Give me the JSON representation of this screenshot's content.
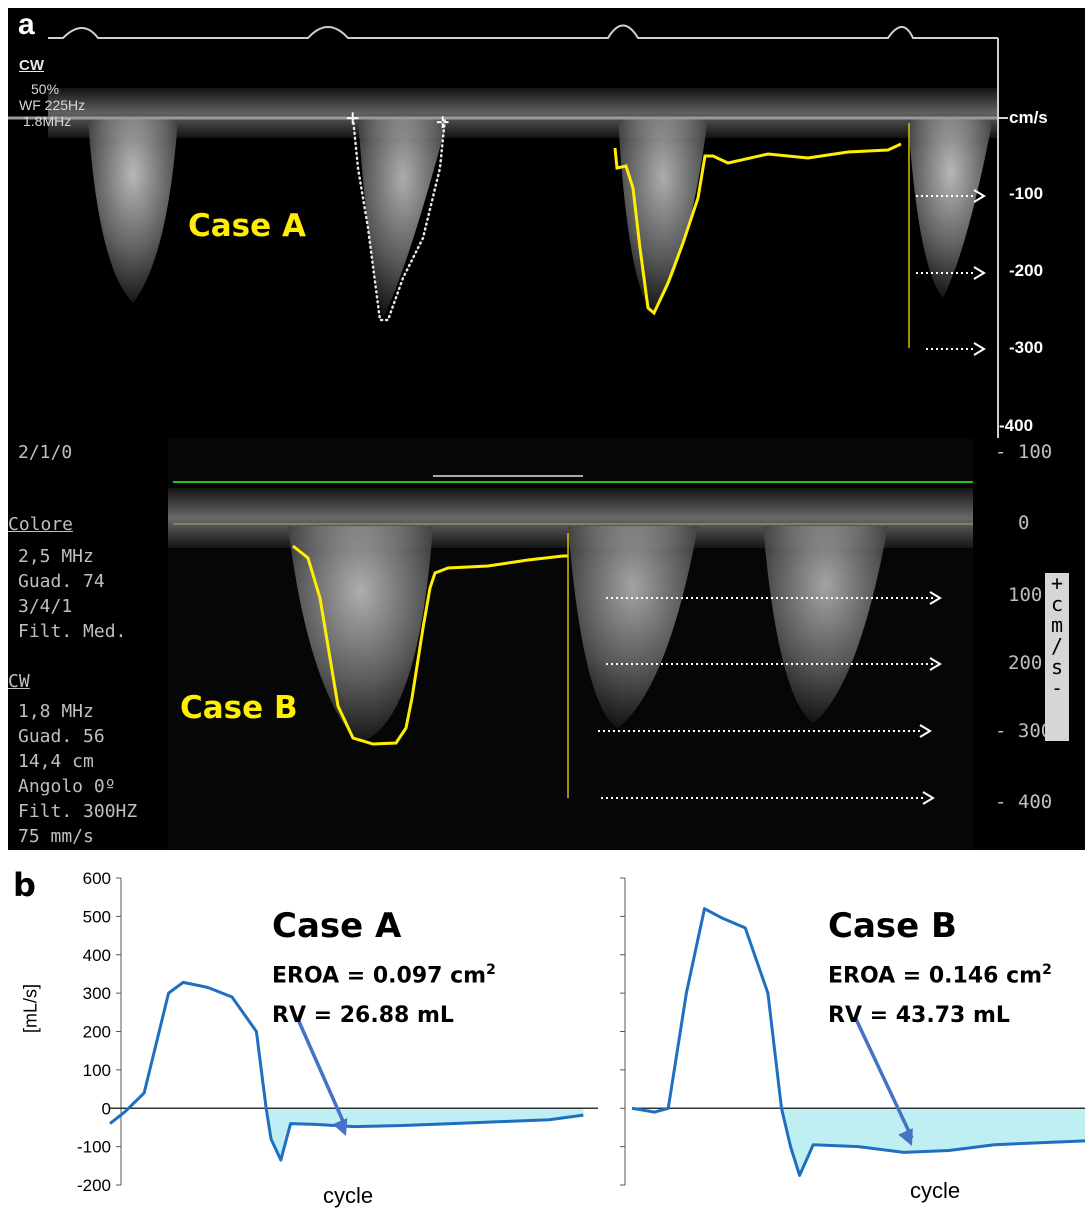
{
  "panel_a": {
    "letter": "a",
    "case_label": "Case A",
    "mode": "CW",
    "settings": [
      "50%",
      "WF 225Hz",
      "1.8MHz"
    ],
    "unit": "cm/s",
    "scale_ticks": [
      "-100",
      "-200",
      "-300",
      "-400"
    ]
  },
  "panel_a_lower": {
    "case_label": "Case B",
    "top_code": "2/1/0",
    "color_header": "Colore",
    "color_settings": [
      "2,5 MHz",
      "Guad. 74",
      "3/4/1",
      "Filt. Med."
    ],
    "cw_header": "CW",
    "cw_settings": [
      "1,8 MHz",
      "Guad. 56",
      "14,4 cm",
      "Angolo 0º",
      "Filt. 300HZ",
      "75 mm/s"
    ],
    "scale_ticks": [
      "100",
      "0",
      "100",
      "200",
      "300",
      "400"
    ],
    "side_unit": [
      "+",
      "c",
      "m",
      "/",
      "s",
      "-"
    ]
  },
  "panel_b": {
    "letter": "b",
    "ylabel": "[mL/s]",
    "y_ticks": [
      "600",
      "500",
      "400",
      "300",
      "200",
      "100",
      "0",
      "-100",
      "-200"
    ],
    "case_a": {
      "title": "Case A",
      "eroa": "EROA = 0.097 cm",
      "eroa_sup": "2",
      "rv": "RV = 26.88 mL",
      "xlabel": "cycle"
    },
    "case_b": {
      "title": "Case B",
      "eroa": "EROA = 0.146 cm",
      "eroa_sup": "2",
      "rv": "RV = 43.73 mL",
      "xlabel": "cycle"
    },
    "colors": {
      "flow": "#1f6fc0",
      "fill": "#bfeff3",
      "arrow": "#4472c4",
      "trace": "#ffee00"
    }
  },
  "chart_data": [
    {
      "type": "line",
      "title": "Case A",
      "xlabel": "cycle",
      "ylabel": "[mL/s]",
      "ylim": [
        -200,
        600
      ],
      "grid": false,
      "annotations": [
        "EROA = 0.097 cm2",
        "RV = 26.88 mL"
      ],
      "series": [
        {
          "x": [
            0,
            0.03,
            0.07,
            0.12,
            0.15,
            0.2,
            0.25,
            0.3,
            0.32,
            0.33,
            0.35,
            0.37,
            0.42,
            0.5,
            0.6,
            0.7,
            0.8,
            0.9,
            0.97
          ],
          "values": [
            -40,
            -10,
            40,
            300,
            328,
            315,
            290,
            200,
            0,
            -80,
            -135,
            -40,
            -42,
            -48,
            -45,
            -40,
            -35,
            -30,
            -18
          ]
        }
      ]
    },
    {
      "type": "line",
      "title": "Case B",
      "xlabel": "cycle",
      "ylabel": "[mL/s]",
      "ylim": [
        -200,
        600
      ],
      "grid": false,
      "annotations": [
        "EROA = 0.146 cm2",
        "RV = 43.73 mL"
      ],
      "series": [
        {
          "x": [
            0,
            0.05,
            0.08,
            0.12,
            0.16,
            0.2,
            0.25,
            0.3,
            0.33,
            0.35,
            0.37,
            0.4,
            0.5,
            0.6,
            0.7,
            0.8,
            0.9,
            1.0
          ],
          "values": [
            0,
            -10,
            0,
            300,
            520,
            495,
            470,
            300,
            0,
            -100,
            -175,
            -95,
            -100,
            -115,
            -110,
            -95,
            -90,
            -85
          ]
        }
      ]
    }
  ]
}
